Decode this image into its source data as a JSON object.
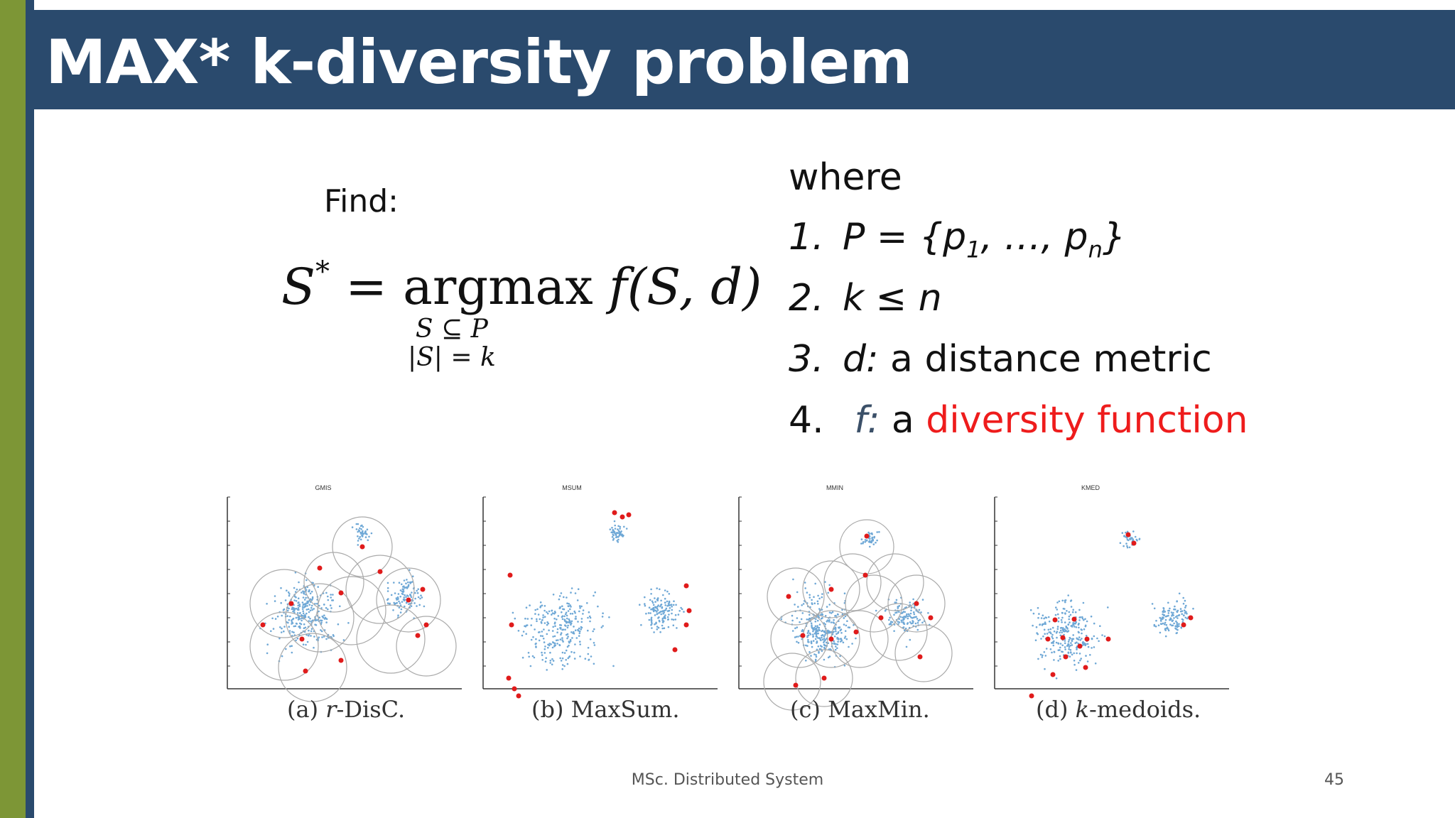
{
  "slide": {
    "title": "MAX* k-diversity problem",
    "find_label": "Find:",
    "formula": {
      "lhs": "S",
      "lhs_sup": "*",
      "operator": "= argmax",
      "function": "f(S, d)",
      "constraint_1": "S ⊆ P",
      "constraint_2": "|S| = k"
    },
    "where": {
      "title": "where",
      "items": [
        {
          "number": "1.",
          "text_a": "P = {p",
          "sub_a": "1",
          "text_b": ", …, p",
          "sub_b": "n",
          "text_c": "}"
        },
        {
          "number": "2.",
          "text": "k ≤ n"
        },
        {
          "number": "3.",
          "var": "d:",
          "text": " a distance metric"
        },
        {
          "number": "4.",
          "var": "f:",
          "text": " a ",
          "highlight": "diversity function"
        }
      ]
    },
    "figures": [
      {
        "plot_title": "GMIS",
        "caption_prefix": "(a) ",
        "caption_var": "r",
        "caption_suffix": "-DisC."
      },
      {
        "plot_title": "MSUM",
        "caption_prefix": "(b) ",
        "caption_var": "",
        "caption_suffix": "MaxSum."
      },
      {
        "plot_title": "MMIN",
        "caption_prefix": "(c) ",
        "caption_var": "",
        "caption_suffix": "MaxMin."
      },
      {
        "plot_title": "KMED",
        "caption_prefix": "(d) ",
        "caption_var": "k",
        "caption_suffix": "-medoids."
      }
    ],
    "footer": "MSc. Distributed System",
    "page_number": "45",
    "colors": {
      "title_band": "#2a4a6d",
      "left_accent": "#7d9636",
      "highlight": "#ee1c1c",
      "points": "#6fa8d6",
      "selected": "#e01b1b",
      "circles": "#aaaaaa"
    }
  }
}
